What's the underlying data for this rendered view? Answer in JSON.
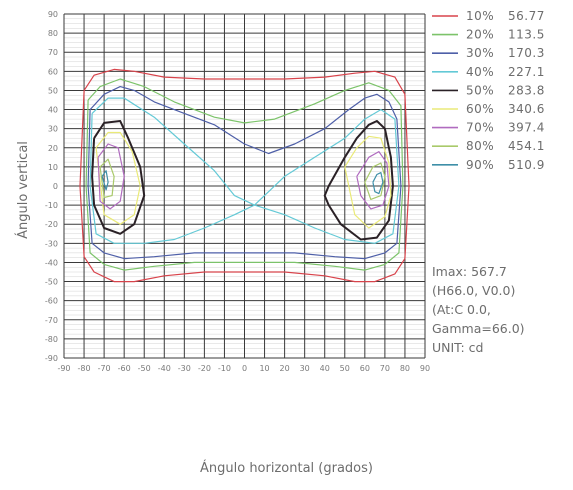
{
  "chart_data": {
    "type": "line",
    "title": "",
    "xlabel": "Ángulo horizontal (grados)",
    "ylabel": "Ángulo vertical",
    "xlim": [
      -90,
      90
    ],
    "ylim": [
      -90,
      90
    ],
    "x_ticks": [
      -90,
      -80,
      -70,
      -60,
      -50,
      -40,
      -30,
      -20,
      -10,
      0,
      10,
      20,
      30,
      40,
      50,
      60,
      70,
      80,
      90
    ],
    "y_ticks": [
      90,
      80,
      70,
      60,
      50,
      40,
      30,
      20,
      10,
      0,
      -10,
      -20,
      -30,
      -40,
      -50,
      -60,
      -70,
      -80,
      -90
    ],
    "grid": true,
    "legend_position": "right",
    "series": [
      {
        "name": "10%",
        "value": "56.77",
        "color": "#d8434b",
        "x": [
          -80,
          -75,
          -65,
          -55,
          -40,
          -20,
          0,
          20,
          40,
          55,
          65,
          75,
          80,
          82,
          80,
          75,
          65,
          55,
          40,
          20,
          0,
          -20,
          -40,
          -55,
          -65,
          -75,
          -80,
          -82,
          -80
        ],
        "y": [
          50,
          58,
          61,
          60,
          57,
          56,
          56,
          56,
          57,
          59,
          60,
          57,
          48,
          0,
          -38,
          -46,
          -50,
          -50,
          -47,
          -45,
          -45,
          -45,
          -47,
          -50,
          -50,
          -45,
          -37,
          0,
          50
        ]
      },
      {
        "name": "20%",
        "value": "113.5",
        "color": "#7cc36a",
        "x": [
          -78,
          -72,
          -62,
          -50,
          -35,
          -15,
          0,
          15,
          35,
          50,
          62,
          72,
          78,
          79,
          77,
          70,
          60,
          45,
          25,
          0,
          -25,
          -45,
          -60,
          -70,
          -77,
          -79,
          -78
        ],
        "y": [
          45,
          52,
          56,
          52,
          44,
          36,
          33,
          35,
          43,
          50,
          54,
          50,
          42,
          0,
          -35,
          -41,
          -44,
          -42,
          -40,
          -40,
          -40,
          -42,
          -44,
          -41,
          -35,
          0,
          45
        ]
      },
      {
        "name": "30%",
        "value": "170.3",
        "color": "#4e5fa8",
        "x": [
          -77,
          -70,
          -62,
          -55,
          -45,
          -30,
          -15,
          0,
          12,
          25,
          40,
          52,
          60,
          66,
          72,
          76,
          78,
          76,
          70,
          60,
          45,
          25,
          0,
          -25,
          -45,
          -60,
          -70,
          -76,
          -78,
          -77
        ],
        "y": [
          40,
          48,
          52,
          50,
          44,
          38,
          32,
          22,
          17,
          22,
          30,
          40,
          46,
          48,
          44,
          35,
          0,
          -30,
          -35,
          -38,
          -37,
          -35,
          -35,
          -35,
          -37,
          -38,
          -35,
          -30,
          0,
          40
        ]
      },
      {
        "name": "40%",
        "value": "227.1",
        "color": "#63c9d6",
        "x": [
          -76,
          -68,
          -60,
          -45,
          -30,
          -15,
          -5,
          5,
          20,
          35,
          50,
          60,
          68,
          75,
          77,
          74,
          65,
          50,
          35,
          20,
          5,
          -5,
          -20,
          -35,
          -50,
          -65,
          -74,
          -77,
          -76
        ],
        "y": [
          38,
          46,
          46,
          36,
          22,
          8,
          -5,
          -10,
          5,
          15,
          25,
          35,
          40,
          35,
          0,
          -25,
          -30,
          -28,
          -22,
          -15,
          -10,
          -15,
          -22,
          -28,
          -30,
          -30,
          -25,
          0,
          38
        ]
      },
      {
        "name": "50%",
        "value": "283.8",
        "color": "#2a2126",
        "x": [
          -75,
          -70,
          -62,
          -58,
          -52,
          -50,
          -55,
          -62,
          -70,
          -75,
          -76,
          -75
        ],
        "y": [
          25,
          33,
          34,
          25,
          10,
          -5,
          -20,
          -25,
          -22,
          -10,
          5,
          25
        ],
        "x2": [
          42,
          50,
          56,
          62,
          66,
          70,
          73,
          74,
          72,
          66,
          58,
          48,
          42,
          40,
          42
        ],
        "y2": [
          0,
          15,
          25,
          32,
          34,
          30,
          15,
          0,
          -18,
          -27,
          -28,
          -20,
          -10,
          -5,
          0
        ]
      },
      {
        "name": "60%",
        "value": "340.6",
        "color": "#eaea78",
        "x": [
          -74,
          -68,
          -62,
          -56,
          -52,
          -55,
          -62,
          -70,
          -74
        ],
        "y": [
          20,
          28,
          28,
          18,
          0,
          -15,
          -20,
          -15,
          20
        ],
        "x2": [
          50,
          56,
          62,
          68,
          72,
          73,
          70,
          62,
          55,
          50
        ],
        "y2": [
          10,
          20,
          26,
          25,
          12,
          -5,
          -16,
          -22,
          -15,
          10
        ]
      },
      {
        "name": "70%",
        "value": "397.4",
        "color": "#b06bbf",
        "x": [
          -73,
          -68,
          -63,
          -60,
          -62,
          -67,
          -72,
          -73
        ],
        "y": [
          15,
          22,
          20,
          5,
          -8,
          -12,
          -8,
          15
        ],
        "x2": [
          56,
          62,
          67,
          71,
          72,
          69,
          63,
          58,
          56
        ],
        "y2": [
          5,
          15,
          18,
          12,
          0,
          -10,
          -12,
          -5,
          5
        ]
      },
      {
        "name": "80%",
        "value": "454.1",
        "color": "#a9c96a",
        "x": [
          -72,
          -68,
          -65,
          -66,
          -70,
          -72
        ],
        "y": [
          10,
          14,
          5,
          -5,
          -6,
          10
        ],
        "x2": [
          60,
          64,
          68,
          70,
          68,
          63,
          60
        ],
        "y2": [
          2,
          10,
          12,
          5,
          -5,
          -7,
          2
        ]
      },
      {
        "name": "90%",
        "value": "510.9",
        "color": "#3e8fa8",
        "x": [
          -71,
          -69,
          -68,
          -69,
          -71
        ],
        "y": [
          5,
          8,
          2,
          -2,
          5
        ],
        "x2": [
          64,
          66,
          68,
          69,
          67,
          65,
          64
        ],
        "y2": [
          2,
          6,
          7,
          2,
          -4,
          -3,
          2
        ]
      }
    ]
  },
  "info": {
    "line1": "Imax: 567.7",
    "line2": "(H66.0, V0.0)",
    "line3": "(At:C 0.0,",
    "line4": "Gamma=66.0)",
    "line5": "UNIT: cd"
  }
}
